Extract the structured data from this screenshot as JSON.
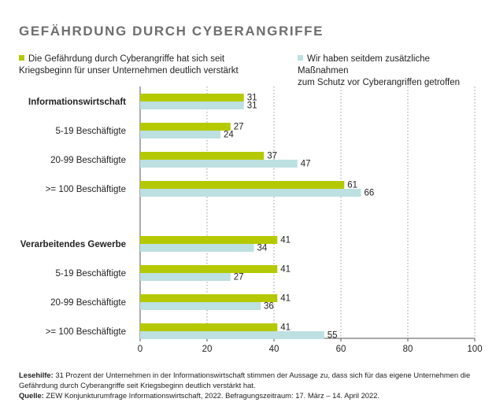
{
  "chart_data": {
    "type": "bar",
    "title": "GEFÄHRDUNG DURCH CYBERANGRIFFE",
    "categories": [
      {
        "label": "Informationswirtschaft",
        "bold": true
      },
      {
        "label": "5-19 Beschäftigte",
        "bold": false
      },
      {
        "label": "20-99 Beschäftigte",
        "bold": false
      },
      {
        "label": ">= 100 Beschäftigte",
        "bold": false
      },
      {
        "label": "Verarbeitendes Gewerbe",
        "bold": true
      },
      {
        "label": "5-19 Beschäftigte",
        "bold": false
      },
      {
        "label": "20-99 Beschäftigte",
        "bold": false
      },
      {
        "label": ">= 100 Beschäftigte",
        "bold": false
      }
    ],
    "series": [
      {
        "name": "Die Gefährdung durch Cyberangriffe hat sich seit Kriegsbeginn für unser Unternehmen deutlich verstärkt",
        "color": "#b5c900",
        "values": [
          31,
          27,
          37,
          61,
          41,
          41,
          41,
          41
        ]
      },
      {
        "name": "Wir haben seitdem zusätzliche Maßnahmen zum Schutz vor Cyberangriffen getroffen",
        "color": "#bde0e1",
        "values": [
          31,
          24,
          47,
          66,
          34,
          27,
          36,
          55
        ]
      }
    ],
    "xlim": [
      0,
      100
    ],
    "xticks": [
      0,
      20,
      40,
      60,
      80,
      100
    ],
    "xlabel": "",
    "ylabel": "",
    "grid": true,
    "legend_position": "top"
  },
  "legend_lines": {
    "s1": [
      "Die Gefährdung durch Cyberangriffe hat sich seit",
      "Kriegsbeginn für unser Unternehmen deutlich verstärkt"
    ],
    "s2": [
      "Wir haben seitdem zusätzliche Maßnahmen",
      "zum Schutz vor Cyberangriffen getroffen"
    ]
  },
  "notes": {
    "lesehilfe_label": "Lesehilfe:",
    "lesehilfe_text": "31 Prozent der Unternehmen in der Informationswirtschaft stimmen der Aussage zu, dass sich für das eigene Unternehmen die Gefährdung durch Cyberangriffe seit Kriegsbeginn deutlich verstärkt hat.",
    "quelle_label": "Quelle:",
    "quelle_text": "ZEW Konjunkturumfrage Informationswirtschaft, 2022. Befragungszeitraum: 17. März – 14. April 2022."
  }
}
